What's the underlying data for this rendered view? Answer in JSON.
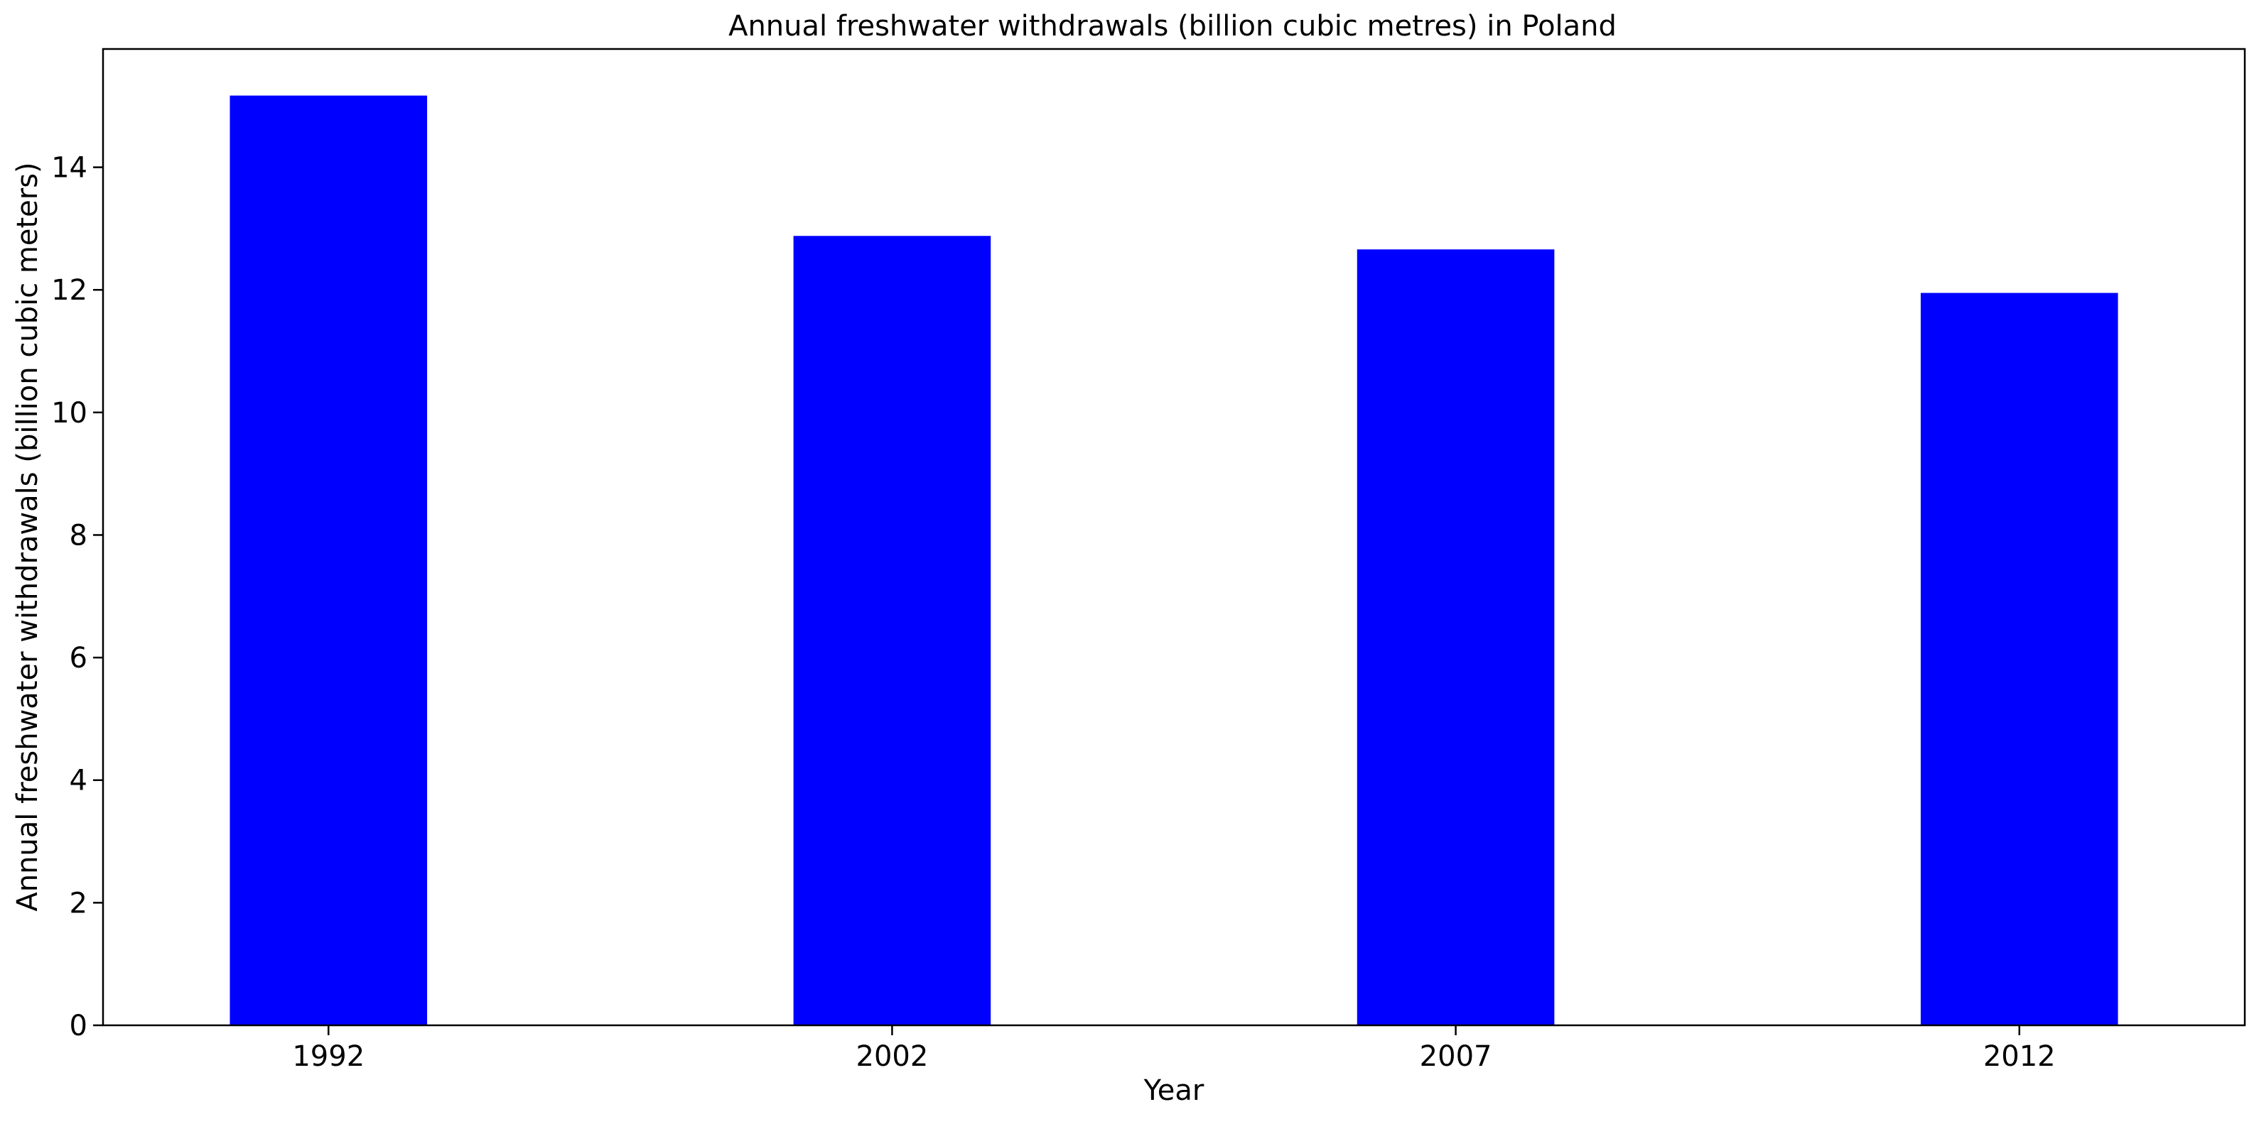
{
  "chart_data": {
    "type": "bar",
    "title": "Annual freshwater withdrawals (billion cubic metres) in Poland",
    "xlabel": "Year",
    "ylabel": "Annual freshwater withdrawals (billion cubic meters)",
    "categories": [
      "1992",
      "2002",
      "2007",
      "2012"
    ],
    "values": [
      15.17,
      12.88,
      12.66,
      11.95
    ],
    "ylim": [
      0,
      15.93
    ],
    "yticks": [
      0,
      2,
      4,
      6,
      8,
      10,
      12,
      14
    ],
    "grid": false,
    "legend": "none",
    "bar_color": "#0000ff"
  }
}
